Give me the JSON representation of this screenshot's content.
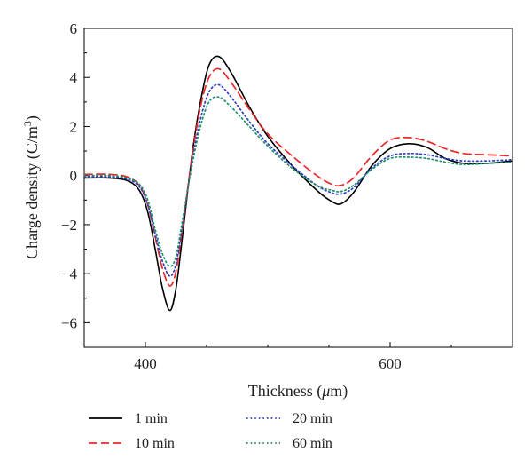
{
  "chart_data": {
    "type": "line",
    "xlabel_main": "Thickness (",
    "xlabel_unit_mu": "μ",
    "xlabel_unit_rest": "m)",
    "ylabel_main": "Charge density (C/m",
    "ylabel_sup": "3",
    "ylabel_close": ")",
    "xlim": [
      350,
      700
    ],
    "ylim": [
      -7,
      6
    ],
    "x_ticks": [
      400,
      600
    ],
    "x_tick_labels": [
      "400",
      "600"
    ],
    "y_ticks": [
      -6,
      -4,
      -2,
      0,
      2,
      4,
      6
    ],
    "y_tick_labels": [
      "−6",
      "−4",
      "−2",
      "0",
      "2",
      "4",
      "6"
    ],
    "grid": false,
    "legend_position": "bottom",
    "colors": {
      "1 min": "#000000",
      "10 min": "#e8282b",
      "20 min": "#2b3fbf",
      "60 min": "#1f8f6a"
    },
    "x": [
      350,
      370,
      385,
      395,
      402,
      408,
      414,
      420,
      425,
      430,
      438,
      445,
      452,
      460,
      470,
      485,
      500,
      520,
      540,
      552,
      560,
      570,
      585,
      600,
      615,
      630,
      645,
      660,
      680,
      700
    ],
    "series": [
      {
        "name": "1 min",
        "style": "solid",
        "values": [
          -0.1,
          -0.1,
          -0.2,
          -0.6,
          -1.5,
          -3.0,
          -4.6,
          -5.5,
          -4.6,
          -2.6,
          0.8,
          3.0,
          4.5,
          4.85,
          4.2,
          2.8,
          1.6,
          0.4,
          -0.6,
          -1.05,
          -1.15,
          -0.7,
          0.4,
          1.1,
          1.3,
          1.15,
          0.7,
          0.5,
          0.5,
          0.6
        ]
      },
      {
        "name": "10 min",
        "style": "dashed",
        "values": [
          0.05,
          0.05,
          -0.05,
          -0.4,
          -1.2,
          -2.5,
          -3.8,
          -4.5,
          -3.9,
          -2.2,
          0.7,
          2.8,
          4.0,
          4.35,
          3.8,
          2.7,
          1.7,
          0.8,
          0.0,
          -0.35,
          -0.4,
          -0.1,
          0.8,
          1.45,
          1.55,
          1.4,
          1.1,
          0.9,
          0.85,
          0.8
        ]
      },
      {
        "name": "20 min",
        "style": "dotted",
        "values": [
          -0.05,
          -0.05,
          -0.15,
          -0.45,
          -1.2,
          -2.4,
          -3.5,
          -4.1,
          -3.6,
          -2.1,
          0.5,
          2.3,
          3.4,
          3.7,
          3.2,
          2.2,
          1.3,
          0.4,
          -0.4,
          -0.7,
          -0.75,
          -0.5,
          0.3,
          0.8,
          0.9,
          0.85,
          0.7,
          0.6,
          0.6,
          0.65
        ]
      },
      {
        "name": "60 min",
        "style": "dotted",
        "values": [
          0.0,
          0.0,
          -0.1,
          -0.35,
          -1.0,
          -2.2,
          -3.2,
          -3.7,
          -3.3,
          -1.9,
          0.4,
          2.0,
          3.0,
          3.2,
          2.8,
          2.0,
          1.2,
          0.3,
          -0.4,
          -0.6,
          -0.65,
          -0.4,
          0.25,
          0.7,
          0.75,
          0.7,
          0.55,
          0.45,
          0.5,
          0.55
        ]
      }
    ],
    "legend": [
      {
        "label": "1 min",
        "style": "solid"
      },
      {
        "label": "10 min",
        "style": "dashed"
      },
      {
        "label": "20 min",
        "style": "dotted"
      },
      {
        "label": "60 min",
        "style": "dotted"
      }
    ]
  }
}
